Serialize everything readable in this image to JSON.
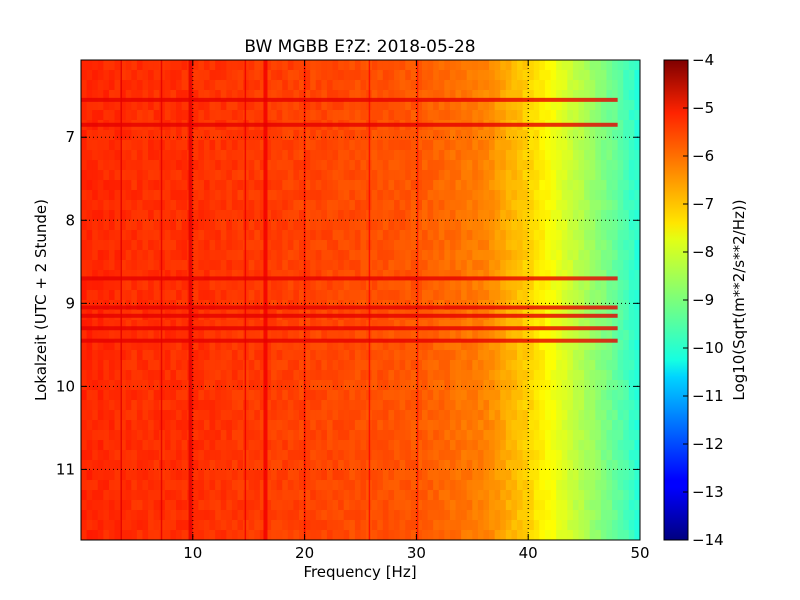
{
  "chart_data": {
    "type": "heatmap",
    "title": "BW MGBB E?Z: 2018-05-28",
    "xlabel": "Frequency [Hz]",
    "ylabel": "Lokalzeit (UTC + 2 Stunde)",
    "colorbar_label": "Log10(Sqrt(m**2/s**2/Hz))",
    "xlim": [
      0,
      50
    ],
    "ylim": [
      6.07,
      11.85
    ],
    "y_inverted": true,
    "x_ticks": [
      10,
      20,
      30,
      40,
      50
    ],
    "x_tick_labels": [
      "10",
      "20",
      "30",
      "40",
      "50"
    ],
    "y_ticks": [
      7,
      8,
      9,
      10,
      11
    ],
    "y_tick_labels": [
      "7",
      "8",
      "9",
      "10",
      "11"
    ],
    "color_range": [
      -14,
      -4
    ],
    "colorbar_ticks": [
      -4,
      -5,
      -6,
      -7,
      -8,
      -9,
      -10,
      -11,
      -12,
      -13,
      -14
    ],
    "colorbar_tick_labels": [
      "−4",
      "−5",
      "−6",
      "−7",
      "−8",
      "−9",
      "−10",
      "−11",
      "−12",
      "−13",
      "−14"
    ],
    "colormap": "jet",
    "grid": true,
    "base_level_by_frequency": {
      "freq": [
        0,
        5,
        10,
        20,
        30,
        36,
        38,
        40,
        42,
        44,
        46,
        48,
        50
      ],
      "level": [
        -5.6,
        -5.7,
        -5.7,
        -5.9,
        -6.1,
        -6.5,
        -6.9,
        -7.3,
        -7.8,
        -8.3,
        -8.8,
        -9.3,
        -9.9
      ]
    },
    "vertical_lines_hz": [
      3.6,
      7.2,
      9.8,
      14.7,
      16.5,
      20.0,
      25.8,
      30.1
    ],
    "horizontal_bands_hours": [
      6.55,
      6.85,
      8.7,
      9.05,
      9.15,
      9.3,
      9.45
    ]
  }
}
